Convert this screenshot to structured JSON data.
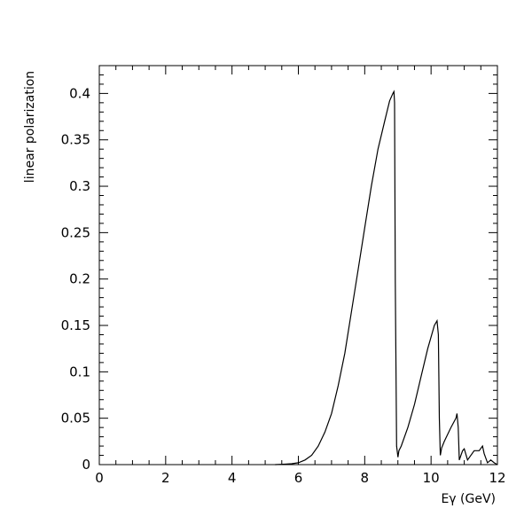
{
  "chart_data": {
    "type": "line",
    "title": "",
    "xlabel": "Eγ (GeV)",
    "ylabel": "linear polarization",
    "xlim": [
      0,
      12
    ],
    "ylim": [
      0,
      0.43
    ],
    "xticks": [
      0,
      2,
      4,
      6,
      8,
      10,
      12
    ],
    "xtick_labels": [
      "0",
      "2",
      "4",
      "6",
      "8",
      "10",
      "12"
    ],
    "yticks": [
      0,
      0.05,
      0.1,
      0.15,
      0.2,
      0.25,
      0.3,
      0.35,
      0.4
    ],
    "ytick_labels": [
      "0",
      "0.05",
      "0.1",
      "0.15",
      "0.2",
      "0.25",
      "0.3",
      "0.35",
      "0.4"
    ],
    "grid": false,
    "series": [
      {
        "name": "",
        "color": "#000000",
        "x": [
          5.3,
          5.6,
          5.8,
          6.0,
          6.2,
          6.4,
          6.6,
          6.8,
          7.0,
          7.2,
          7.4,
          7.6,
          7.8,
          8.0,
          8.2,
          8.4,
          8.6,
          8.75,
          8.85,
          8.88,
          8.9,
          8.92,
          8.96,
          9.0,
          9.03,
          9.1,
          9.3,
          9.5,
          9.7,
          9.9,
          10.1,
          10.18,
          10.22,
          10.25,
          10.28,
          10.32,
          10.4,
          10.6,
          10.75,
          10.78,
          10.82,
          10.85,
          10.95,
          11.0,
          11.1,
          11.3,
          11.45,
          11.55,
          11.6,
          11.7,
          11.8,
          11.9,
          12.0
        ],
        "y": [
          0.0,
          0.0005,
          0.001,
          0.002,
          0.005,
          0.01,
          0.02,
          0.035,
          0.055,
          0.085,
          0.12,
          0.165,
          0.21,
          0.255,
          0.3,
          0.34,
          0.37,
          0.392,
          0.4,
          0.402,
          0.39,
          0.2,
          0.02,
          0.008,
          0.015,
          0.02,
          0.04,
          0.065,
          0.095,
          0.125,
          0.15,
          0.155,
          0.14,
          0.05,
          0.01,
          0.018,
          0.025,
          0.04,
          0.05,
          0.055,
          0.04,
          0.005,
          0.015,
          0.017,
          0.005,
          0.015,
          0.015,
          0.02,
          0.012,
          0.002,
          0.005,
          0.002,
          0.0
        ]
      }
    ]
  }
}
